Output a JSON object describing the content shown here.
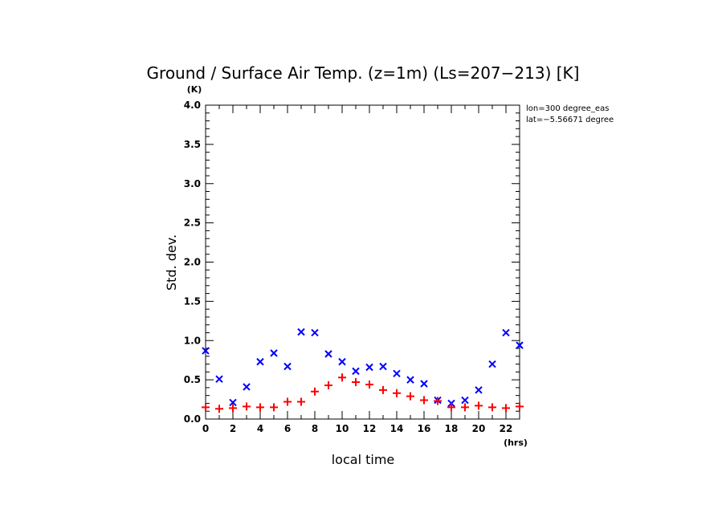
{
  "chart_data": {
    "type": "scatter",
    "title": "Ground / Surface Air Temp. (z=1m) (Ls=207−213) [K]",
    "xlabel": "local time",
    "ylabel": "Std. dev.",
    "x_unit": "(hrs)",
    "y_unit": "(K)",
    "xlim": [
      0,
      23
    ],
    "ylim": [
      0,
      4.0
    ],
    "x_ticks": [
      0,
      2,
      4,
      6,
      8,
      10,
      12,
      14,
      16,
      18,
      20,
      22
    ],
    "x_tick_labels": [
      "0",
      "2",
      "4",
      "6",
      "8",
      "10",
      "12",
      "14",
      "16",
      "18",
      "20",
      "22"
    ],
    "y_ticks": [
      0,
      0.5,
      1.0,
      1.5,
      2.0,
      2.5,
      3.0,
      3.5,
      4.0
    ],
    "y_tick_labels": [
      "0.0",
      "0.5",
      "1.0",
      "1.5",
      "2.0",
      "2.5",
      "3.0",
      "3.5",
      "4.0"
    ],
    "annotations": [
      "lon=300 degree_eas",
      "lat=−5.56671 degree"
    ],
    "grid": false,
    "series": [
      {
        "marker": "x",
        "color": "#0000ff",
        "x": [
          0,
          1,
          2,
          3,
          4,
          5,
          6,
          7,
          8,
          9,
          10,
          11,
          12,
          13,
          14,
          15,
          16,
          17,
          18,
          19,
          20,
          21,
          22,
          23
        ],
        "y": [
          0.87,
          0.51,
          0.21,
          0.41,
          0.73,
          0.84,
          0.67,
          1.11,
          1.1,
          0.83,
          0.73,
          0.61,
          0.66,
          0.67,
          0.58,
          0.5,
          0.45,
          0.24,
          0.2,
          0.24,
          0.37,
          0.7,
          1.1,
          0.94
        ]
      },
      {
        "marker": "+",
        "color": "#ff0000",
        "x": [
          0,
          1,
          2,
          3,
          4,
          5,
          6,
          7,
          8,
          9,
          10,
          11,
          12,
          13,
          14,
          15,
          16,
          17,
          18,
          19,
          20,
          21,
          22,
          23
        ],
        "y": [
          0.15,
          0.13,
          0.14,
          0.16,
          0.15,
          0.15,
          0.22,
          0.22,
          0.35,
          0.43,
          0.53,
          0.47,
          0.44,
          0.37,
          0.33,
          0.29,
          0.24,
          0.23,
          0.15,
          0.15,
          0.17,
          0.15,
          0.14,
          0.16
        ]
      }
    ]
  }
}
